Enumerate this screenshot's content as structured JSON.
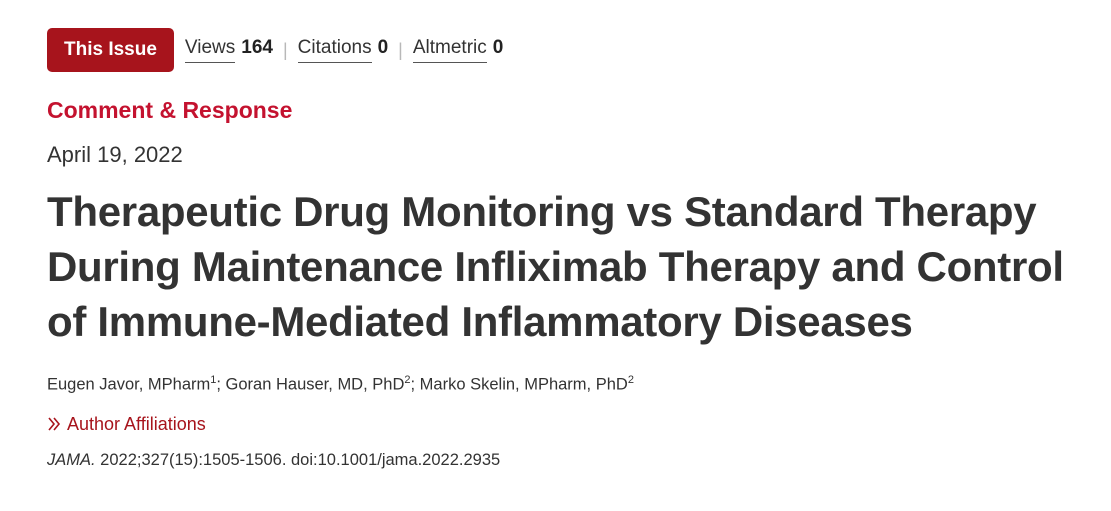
{
  "metrics": {
    "issue_button": "This Issue",
    "views_label": "Views",
    "views_value": "164",
    "citations_label": "Citations",
    "citations_value": "0",
    "altmetric_label": "Altmetric",
    "altmetric_value": "0",
    "separator": "|"
  },
  "article": {
    "type": "Comment & Response",
    "date": "April 19, 2022",
    "title_line1": "Therapeutic Drug Monitoring vs Standard Therapy",
    "title_line2": "During Maintenance Infliximab Therapy and Control",
    "title_line3": "of Immune-Mediated Inflammatory Diseases",
    "authors": [
      {
        "name": "Eugen Javor, MPharm",
        "sup": "1",
        "sep": "; "
      },
      {
        "name": "Goran Hauser, MD, PhD",
        "sup": "2",
        "sep": "; "
      },
      {
        "name": "Marko Skelin, MPharm, PhD",
        "sup": "2",
        "sep": ""
      }
    ],
    "affiliations_label": "Author Affiliations",
    "citation_journal": "JAMA.",
    "citation_rest": " 2022;327(15):1505-1506. doi:10.1001/jama.2022.2935"
  },
  "colors": {
    "brand_red": "#a7141c",
    "section_red": "#c4122f",
    "text": "#333333"
  },
  "icons": {
    "affiliations": "chevron-right-double-icon"
  }
}
